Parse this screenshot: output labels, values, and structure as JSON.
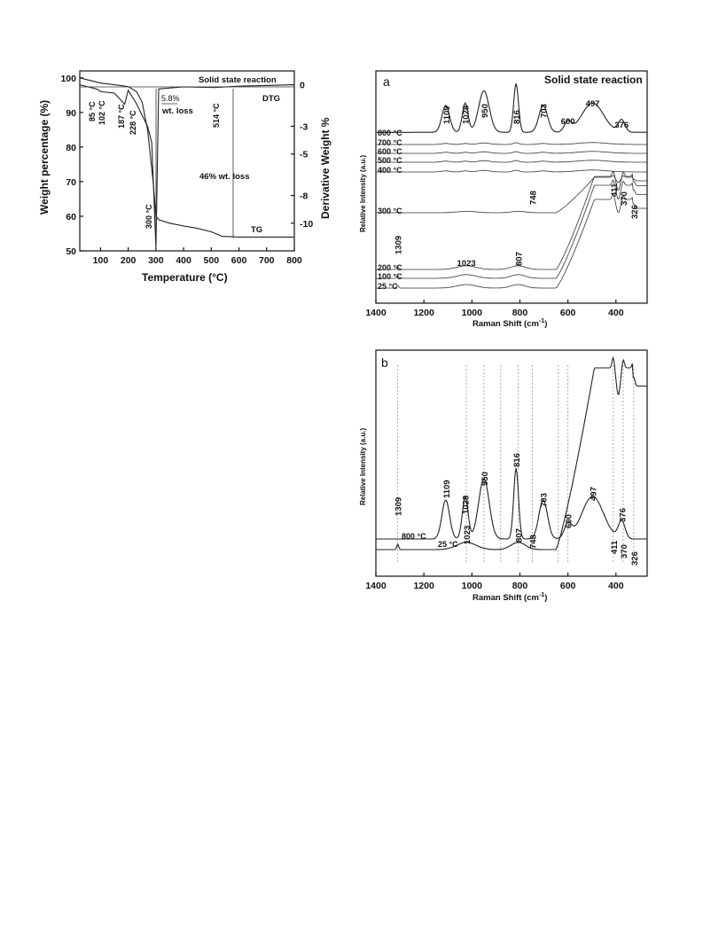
{
  "chart_data": [
    {
      "panel": "TG-DTG",
      "type": "line",
      "title": "Solid state reaction",
      "xlabel": "Temperature (°C)",
      "ylabel": "Weight percentage (%)",
      "y2label": "Derivative Weight %",
      "xlim": [
        25,
        800
      ],
      "ylim": [
        50,
        102
      ],
      "y2lim": [
        -12,
        1
      ],
      "x_ticks": [
        "100",
        "200",
        "300",
        "400",
        "500",
        "600",
        "700",
        "800"
      ],
      "y_ticks": [
        "50",
        "60",
        "70",
        "80",
        "90",
        "100"
      ],
      "y2_ticks": [
        "-10",
        "-8",
        "-5",
        "-3",
        "0"
      ],
      "series": [
        {
          "name": "TG",
          "x": [
            25,
            100,
            150,
            200,
            230,
            250,
            270,
            290,
            300,
            310,
            350,
            400,
            450,
            500,
            540,
            600,
            700,
            800
          ],
          "y": [
            100,
            98.5,
            98,
            97.5,
            96,
            93,
            85,
            70,
            60,
            59,
            58,
            57.2,
            56.5,
            55.5,
            54.2,
            54,
            54,
            54
          ]
        },
        {
          "name": "DTG",
          "x": [
            25,
            85,
            102,
            150,
            187,
            200,
            228,
            250,
            270,
            285,
            300,
            310,
            400,
            514,
            600,
            700,
            800
          ],
          "y": [
            0,
            -0.3,
            -0.5,
            -0.6,
            -1.4,
            -0.4,
            -1.3,
            -2.2,
            -3.0,
            -4.2,
            -11.8,
            -0.3,
            -0.15,
            -0.2,
            -0.1,
            -0.05,
            0
          ]
        }
      ],
      "annotations": [
        "85 °C",
        "102 °C",
        "187 °C",
        "228 °C",
        "300 °C",
        "5.8%",
        "wt. loss",
        "514 °C",
        "46% wt. loss"
      ]
    },
    {
      "panel": "a",
      "type": "line",
      "title": "Solid state reaction",
      "xlabel": "Raman Shift (cm⁻¹)",
      "ylabel": "Relative Intensity (a.u.)",
      "xlim": [
        1400,
        270
      ],
      "x_ticks": [
        "1400",
        "1200",
        "1000",
        "800",
        "600",
        "400"
      ],
      "series": [
        {
          "name": "800 °C",
          "peaks": [
            1109,
            1028,
            950,
            816,
            703,
            600,
            497,
            376
          ]
        },
        {
          "name": "700 °C"
        },
        {
          "name": "600 °C"
        },
        {
          "name": "500 °C"
        },
        {
          "name": "400 °C"
        },
        {
          "name": "300 °C",
          "peaks": [
            748,
            411,
            370,
            326
          ]
        },
        {
          "name": "200 °C",
          "peaks": [
            1309,
            1023,
            807
          ]
        },
        {
          "name": "100 °C"
        },
        {
          "name": "25 °C"
        }
      ],
      "peak_labels": [
        "1109",
        "1028",
        "950",
        "816",
        "703",
        "600",
        "497",
        "376",
        "748",
        "411",
        "370",
        "326",
        "1309",
        "1023",
        "807"
      ]
    },
    {
      "panel": "b",
      "type": "line",
      "xlabel": "Raman Shift (cm⁻¹)",
      "ylabel": "Relative Intensity (a.u.)",
      "xlim": [
        1400,
        270
      ],
      "x_ticks": [
        "1400",
        "1200",
        "1000",
        "800",
        "600",
        "400"
      ],
      "series": [
        {
          "name": "800 °C",
          "peaks": [
            1109,
            1028,
            950,
            816,
            703,
            600,
            497,
            376
          ]
        },
        {
          "name": "25 °C",
          "peaks": [
            1309,
            1023,
            807,
            748,
            411,
            370,
            326
          ]
        }
      ],
      "reference_lines": [
        1309,
        1023,
        950,
        880,
        807,
        748,
        640,
        600,
        411,
        370,
        326
      ]
    }
  ],
  "labels": {
    "tg_title": "Solid state reaction",
    "tg_x": "Temperature (°C)",
    "tg_y": "Weight percentage (%)",
    "tg_y2": "Derivative Weight %",
    "dtg": "DTG",
    "tg": "TG",
    "a_tag": "a",
    "a_title": "Solid state reaction",
    "b_tag": "b",
    "raman_x": "Raman Shift (cm",
    "raman_x_sup": "-1",
    "raman_x_end": ")",
    "raman_y": "Relative Intensity (a.u.)"
  }
}
